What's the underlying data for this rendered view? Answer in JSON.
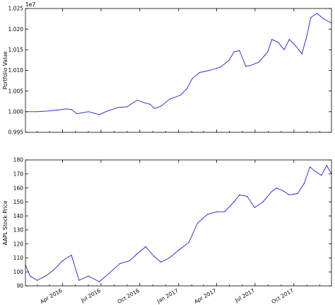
{
  "chart_data": [
    {
      "type": "line",
      "title": "",
      "xlabel": "",
      "ylabel": "Portfolio Value",
      "offset_label": "1e7",
      "ylim": [
        0.995,
        1.025
      ],
      "yticks": [
        0.995,
        1.0,
        1.005,
        1.01,
        1.015,
        1.02,
        1.025
      ],
      "ytick_labels": [
        "0.995",
        "1.000",
        "1.005",
        "1.010",
        "1.015",
        "1.020",
        "1.025"
      ],
      "grid": false,
      "series": [
        {
          "color": "#1f1fd4",
          "x": [
            "2016-01-04",
            "2016-02-01",
            "2016-03-01",
            "2016-03-20",
            "2016-04-10",
            "2016-04-22",
            "2016-05-05",
            "2016-06-01",
            "2016-06-27",
            "2016-07-15",
            "2016-08-10",
            "2016-09-01",
            "2016-09-25",
            "2016-10-10",
            "2016-10-25",
            "2016-11-05",
            "2016-11-20",
            "2016-12-10",
            "2017-01-05",
            "2017-01-20",
            "2017-02-02",
            "2017-02-20",
            "2017-03-15",
            "2017-04-10",
            "2017-05-01",
            "2017-05-12",
            "2017-05-25",
            "2017-06-09",
            "2017-06-20",
            "2017-07-10",
            "2017-07-31",
            "2017-08-10",
            "2017-08-25",
            "2017-09-08",
            "2017-09-20",
            "2017-10-05",
            "2017-10-20",
            "2017-11-01",
            "2017-11-10",
            "2017-11-25",
            "2017-12-10",
            "2017-12-29"
          ],
          "y": [
            1.0,
            1.0,
            1.0002,
            1.0004,
            1.0007,
            1.0005,
            0.9995,
            1.0,
            0.9993,
            1.0001,
            1.001,
            1.0012,
            1.0028,
            1.0022,
            1.0018,
            1.0008,
            1.0013,
            1.003,
            1.004,
            1.0055,
            1.008,
            1.0095,
            1.01,
            1.0108,
            1.0125,
            1.0145,
            1.0148,
            1.011,
            1.0112,
            1.012,
            1.0145,
            1.0175,
            1.0168,
            1.015,
            1.0175,
            1.016,
            1.014,
            1.0185,
            1.0228,
            1.0238,
            1.0225,
            1.0215
          ]
        }
      ]
    },
    {
      "type": "line",
      "title": "",
      "xlabel": "",
      "ylabel": "AAPL Stock Price",
      "ylim": [
        90,
        180
      ],
      "yticks": [
        90,
        100,
        110,
        120,
        130,
        140,
        150,
        160,
        170,
        180
      ],
      "ytick_labels": [
        "90",
        "100",
        "110",
        "120",
        "130",
        "140",
        "150",
        "160",
        "170",
        "180"
      ],
      "xtick_labels": [
        "Apr 2016",
        "Jul 2016",
        "Oct 2016",
        "Jan 2017",
        "Apr 2017",
        "Jul 2017",
        "Oct 2017"
      ],
      "grid": false,
      "series": [
        {
          "color": "#1f1fd4",
          "x": [
            "2016-01-04",
            "2016-01-15",
            "2016-02-01",
            "2016-02-20",
            "2016-03-10",
            "2016-04-01",
            "2016-04-22",
            "2016-05-10",
            "2016-06-01",
            "2016-06-27",
            "2016-07-20",
            "2016-08-15",
            "2016-09-07",
            "2016-09-25",
            "2016-10-15",
            "2016-11-04",
            "2016-11-20",
            "2016-12-10",
            "2017-01-03",
            "2017-01-25",
            "2017-02-15",
            "2017-03-10",
            "2017-04-01",
            "2017-04-20",
            "2017-05-12",
            "2017-05-25",
            "2017-06-12",
            "2017-06-30",
            "2017-07-20",
            "2017-08-08",
            "2017-08-20",
            "2017-09-05",
            "2017-09-20",
            "2017-10-10",
            "2017-10-25",
            "2017-11-08",
            "2017-11-20",
            "2017-12-05",
            "2017-12-18",
            "2017-12-29"
          ],
          "y": [
            105,
            97,
            94,
            97,
            101,
            108,
            112,
            94,
            97,
            93,
            99,
            106,
            108,
            113,
            118,
            111,
            107,
            110,
            116,
            121,
            135,
            141,
            143,
            143,
            150,
            155,
            154,
            146,
            150,
            157,
            160,
            158,
            155,
            156,
            163,
            175,
            172,
            169,
            176,
            170
          ]
        }
      ]
    }
  ]
}
